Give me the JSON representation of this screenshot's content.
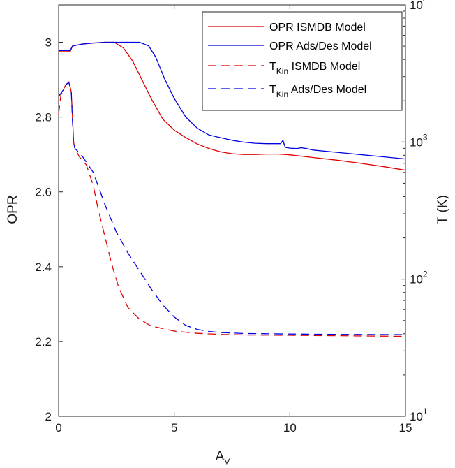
{
  "chart_data": {
    "type": "line",
    "xlabel": {
      "base": "A",
      "sub": "V"
    },
    "ylabel_left": "OPR",
    "ylabel_right": "T (K)",
    "xlim": [
      0,
      15
    ],
    "ylim_left": [
      2,
      3.1
    ],
    "ylim_right_log10": [
      1,
      4
    ],
    "right_scale": "log",
    "grid": false,
    "legend_position": "top-right",
    "x_ticks": [
      "0",
      "5",
      "10",
      "15"
    ],
    "x_tick_values": [
      0,
      5,
      10,
      15
    ],
    "y_left_ticks": [
      "2",
      "2.2",
      "2.4",
      "2.6",
      "2.8",
      "3"
    ],
    "y_left_tick_values": [
      2,
      2.2,
      2.4,
      2.6,
      2.8,
      3
    ],
    "y_right_ticks": [
      {
        "base": "10",
        "exp": "1",
        "value": 10
      },
      {
        "base": "10",
        "exp": "2",
        "value": 100
      },
      {
        "base": "10",
        "exp": "3",
        "value": 1000
      },
      {
        "base": "10",
        "exp": "4",
        "value": 10000
      }
    ],
    "series": [
      {
        "name": "OPR ISMDB Model",
        "legend": {
          "pre": "OPR ISMDB Model",
          "sub": "",
          "post": ""
        },
        "color": "#e00000",
        "dash": "solid",
        "axis": "left",
        "points": [
          [
            0,
            2.975
          ],
          [
            0.5,
            2.975
          ],
          [
            0.6,
            2.99
          ],
          [
            1,
            2.995
          ],
          [
            1.5,
            2.998
          ],
          [
            2,
            3.0
          ],
          [
            2.4,
            3.0
          ],
          [
            2.8,
            2.985
          ],
          [
            3.2,
            2.95
          ],
          [
            3.6,
            2.9
          ],
          [
            4,
            2.85
          ],
          [
            4.5,
            2.795
          ],
          [
            5,
            2.765
          ],
          [
            5.5,
            2.745
          ],
          [
            6,
            2.728
          ],
          [
            6.5,
            2.716
          ],
          [
            7,
            2.707
          ],
          [
            7.5,
            2.702
          ],
          [
            8,
            2.7
          ],
          [
            8.5,
            2.7
          ],
          [
            9,
            2.701
          ],
          [
            9.5,
            2.701
          ],
          [
            10,
            2.699
          ],
          [
            11,
            2.692
          ],
          [
            12,
            2.685
          ],
          [
            13,
            2.677
          ],
          [
            14,
            2.668
          ],
          [
            15,
            2.658
          ]
        ]
      },
      {
        "name": "OPR Ads/Des Model",
        "legend": {
          "pre": "OPR Ads/Des Model",
          "sub": "",
          "post": ""
        },
        "color": "#0000e0",
        "dash": "solid",
        "axis": "left",
        "points": [
          [
            0,
            2.978
          ],
          [
            0.5,
            2.978
          ],
          [
            0.6,
            2.99
          ],
          [
            1,
            2.995
          ],
          [
            1.5,
            2.998
          ],
          [
            2,
            3.0
          ],
          [
            3,
            3.0
          ],
          [
            3.5,
            3.0
          ],
          [
            3.9,
            2.99
          ],
          [
            4.2,
            2.96
          ],
          [
            4.6,
            2.9
          ],
          [
            5,
            2.85
          ],
          [
            5.5,
            2.8
          ],
          [
            6,
            2.77
          ],
          [
            6.5,
            2.752
          ],
          [
            7,
            2.745
          ],
          [
            7.5,
            2.738
          ],
          [
            8,
            2.733
          ],
          [
            8.5,
            2.73
          ],
          [
            9,
            2.729
          ],
          [
            9.6,
            2.729
          ],
          [
            9.7,
            2.738
          ],
          [
            9.8,
            2.719
          ],
          [
            10,
            2.717
          ],
          [
            10.3,
            2.716
          ],
          [
            10.5,
            2.718
          ],
          [
            10.8,
            2.715
          ],
          [
            11,
            2.712
          ],
          [
            12,
            2.706
          ],
          [
            13,
            2.7
          ],
          [
            14,
            2.694
          ],
          [
            15,
            2.688
          ]
        ]
      },
      {
        "name": "T_Kin ISMDB Model",
        "legend": {
          "pre": "T",
          "sub": "Kin",
          "post": " ISMDB Model"
        },
        "color": "#e00000",
        "dash": "dashed",
        "axis": "right",
        "points": [
          [
            0,
            1600
          ],
          [
            0.1,
            2200
          ],
          [
            0.3,
            2600
          ],
          [
            0.45,
            2750
          ],
          [
            0.55,
            2300
          ],
          [
            0.6,
            1500
          ],
          [
            0.65,
            1000
          ],
          [
            0.7,
            900
          ],
          [
            0.9,
            780
          ],
          [
            1.2,
            680
          ],
          [
            1.5,
            480
          ],
          [
            1.7,
            330
          ],
          [
            2,
            205
          ],
          [
            2.3,
            128
          ],
          [
            2.6,
            87
          ],
          [
            3,
            62
          ],
          [
            3.5,
            51
          ],
          [
            4,
            45.5
          ],
          [
            5,
            41.8
          ],
          [
            6,
            40.3
          ],
          [
            7,
            39.6
          ],
          [
            8,
            39.2
          ],
          [
            10,
            39
          ],
          [
            12,
            38.7
          ],
          [
            15,
            38.3
          ]
        ]
      },
      {
        "name": "T_Kin Ads/Des Model",
        "legend": {
          "pre": "T",
          "sub": "Kin",
          "post": " Ads/Des Model"
        },
        "color": "#0000e0",
        "dash": "dashed",
        "axis": "right",
        "points": [
          [
            0,
            2150
          ],
          [
            0.2,
            2400
          ],
          [
            0.35,
            2650
          ],
          [
            0.45,
            2700
          ],
          [
            0.55,
            2300
          ],
          [
            0.6,
            1400
          ],
          [
            0.65,
            1000
          ],
          [
            0.7,
            900
          ],
          [
            1,
            800
          ],
          [
            1.5,
            600
          ],
          [
            2,
            350
          ],
          [
            2.5,
            220
          ],
          [
            3,
            155
          ],
          [
            3.5,
            115
          ],
          [
            4,
            85
          ],
          [
            4.5,
            65
          ],
          [
            5,
            53
          ],
          [
            5.5,
            46
          ],
          [
            6,
            43
          ],
          [
            6.5,
            41.6
          ],
          [
            7,
            40.8
          ],
          [
            8,
            40.2
          ],
          [
            10,
            39.8
          ],
          [
            12,
            39.6
          ],
          [
            15,
            39.4
          ]
        ]
      }
    ]
  }
}
